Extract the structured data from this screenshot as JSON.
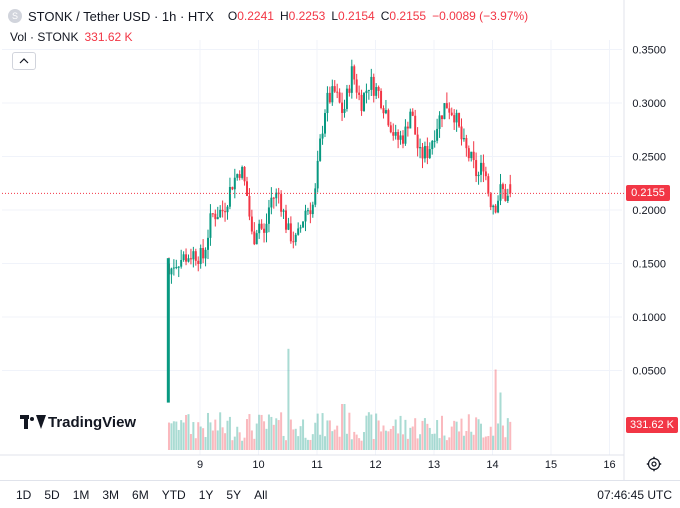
{
  "header": {
    "icon_letter": "S",
    "title": "STONK / Tether USD · 1h · HTX",
    "ohlc": [
      {
        "k": "O",
        "v": "0.2241"
      },
      {
        "k": "H",
        "v": "0.2253"
      },
      {
        "k": "L",
        "v": "0.2154"
      },
      {
        "k": "C",
        "v": "0.2155"
      },
      {
        "k": "",
        "v": "−0.0089 (−3.97%)"
      }
    ]
  },
  "volume_legend": {
    "label": "Vol · STONK",
    "value": "331.62 K"
  },
  "collapse_icon": "chevron-up-icon",
  "price_tag": "0.2155",
  "volume_tag": "331.62 K",
  "logo_text": "TradingView",
  "ranges": [
    "1D",
    "5D",
    "1M",
    "3M",
    "6M",
    "YTD",
    "1Y",
    "5Y",
    "All"
  ],
  "clock": "07:46:45 UTC",
  "colors": {
    "up": "#089981",
    "down": "#f23645",
    "grid": "#f0f3fa"
  },
  "chart_data": {
    "type": "candlestick",
    "pair": "STONK / Tether USD",
    "interval": "1h",
    "exchange": "HTX",
    "y_ticks": [
      "0.3500",
      "0.3000",
      "0.2500",
      "0.2000",
      "0.1500",
      "0.1000",
      "0.0500"
    ],
    "y_tick_values": [
      0.35,
      0.3,
      0.25,
      0.2,
      0.15,
      0.1,
      0.05
    ],
    "x_ticks": [
      "9",
      "10",
      "11",
      "12",
      "13",
      "14",
      "15",
      "16"
    ],
    "x_tick_values": [
      9,
      10,
      11,
      12,
      13,
      14,
      15,
      16
    ],
    "last_price": 0.2155,
    "last_volume": "331.62 K",
    "price_path": [
      [
        8.45,
        0.02
      ],
      [
        8.47,
        0.14
      ],
      [
        8.55,
        0.15
      ],
      [
        8.7,
        0.155
      ],
      [
        8.9,
        0.16
      ],
      [
        9.05,
        0.155
      ],
      [
        9.2,
        0.195
      ],
      [
        9.4,
        0.2
      ],
      [
        9.55,
        0.225
      ],
      [
        9.7,
        0.24
      ],
      [
        9.8,
        0.215
      ],
      [
        9.9,
        0.17
      ],
      [
        10.0,
        0.19
      ],
      [
        10.1,
        0.175
      ],
      [
        10.2,
        0.21
      ],
      [
        10.35,
        0.215
      ],
      [
        10.5,
        0.18
      ],
      [
        10.65,
        0.17
      ],
      [
        10.8,
        0.2
      ],
      [
        10.95,
        0.205
      ],
      [
        11.05,
        0.26
      ],
      [
        11.15,
        0.3
      ],
      [
        11.3,
        0.31
      ],
      [
        11.45,
        0.29
      ],
      [
        11.6,
        0.33
      ],
      [
        11.75,
        0.3
      ],
      [
        11.9,
        0.32
      ],
      [
        12.05,
        0.31
      ],
      [
        12.2,
        0.29
      ],
      [
        12.35,
        0.265
      ],
      [
        12.5,
        0.27
      ],
      [
        12.6,
        0.295
      ],
      [
        12.75,
        0.25
      ],
      [
        12.9,
        0.255
      ],
      [
        13.05,
        0.28
      ],
      [
        13.2,
        0.3
      ],
      [
        13.35,
        0.29
      ],
      [
        13.5,
        0.26
      ],
      [
        13.65,
        0.245
      ],
      [
        13.75,
        0.23
      ],
      [
        13.85,
        0.245
      ],
      [
        13.95,
        0.21
      ],
      [
        14.05,
        0.205
      ],
      [
        14.15,
        0.22
      ],
      [
        14.25,
        0.21
      ],
      [
        14.33,
        0.2155
      ]
    ],
    "volume_peaks": [
      [
        10.5,
        0.88
      ],
      [
        11.45,
        0.4
      ],
      [
        14.05,
        0.7
      ],
      [
        14.15,
        0.5
      ]
    ]
  }
}
